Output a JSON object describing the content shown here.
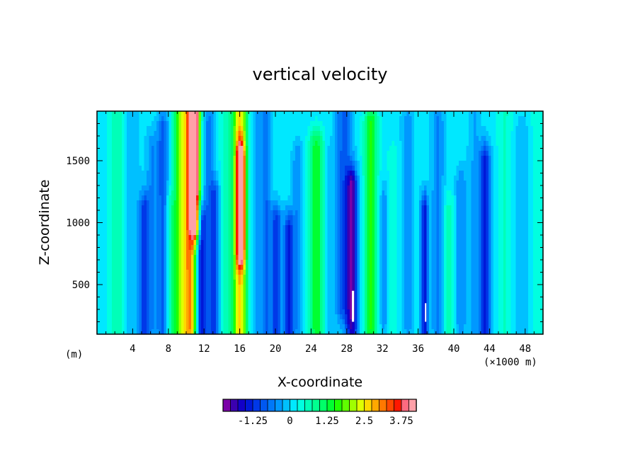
{
  "chart_data": {
    "type": "heatmap",
    "title": "vertical velocity",
    "xlabel": "X-coordinate",
    "ylabel": "Z-coordinate",
    "x_unit_left": "(m)",
    "x_unit_right": "(×1000 m)",
    "xlim": [
      0,
      50
    ],
    "ylim": [
      100,
      1900
    ],
    "x_ticks": [
      4,
      8,
      12,
      16,
      20,
      24,
      28,
      32,
      36,
      40,
      44,
      48
    ],
    "y_ticks": [
      500,
      1000,
      1500
    ],
    "colorbar": {
      "levels": [
        -2,
        -1.75,
        -1.5,
        -1.25,
        -1,
        -0.75,
        -0.5,
        -0.25,
        0,
        0.25,
        0.5,
        0.75,
        1,
        1.25,
        1.5,
        1.75,
        2,
        2.25,
        2.5,
        2.75,
        3,
        3.25,
        3.5,
        3.75,
        4
      ],
      "tick_labels": [
        "-1.25",
        "0",
        "1.25",
        "2.5",
        "3.75"
      ],
      "tick_values": [
        -1.25,
        0,
        1.25,
        2.5,
        3.75
      ],
      "colors": [
        "#7b00a8",
        "#3b00b0",
        "#1200c8",
        "#0018d8",
        "#0038e8",
        "#0058f0",
        "#0078f8",
        "#0098ff",
        "#00c0ff",
        "#00e8ff",
        "#00ffe0",
        "#00ffb8",
        "#00ff90",
        "#00ff68",
        "#00ff30",
        "#20ff00",
        "#60ff00",
        "#a0ff00",
        "#e0ff00",
        "#ffd800",
        "#ffa800",
        "#ff7800",
        "#ff4800",
        "#ff1800",
        "#ff6a80",
        "#ffa0a8"
      ]
    },
    "features": [
      {
        "x": 2.3,
        "w": 0.9,
        "z0": 100,
        "z1": 1900,
        "v": 0.55
      },
      {
        "x": 3.8,
        "w": 0.9,
        "z0": 100,
        "z1": 1900,
        "v": -0.4
      },
      {
        "x": 5.3,
        "w": 0.55,
        "z0": 100,
        "z1": 1100,
        "v": -1.2
      },
      {
        "x": 6.2,
        "w": 0.7,
        "z0": 200,
        "z1": 1600,
        "v": -0.6
      },
      {
        "x": 7.4,
        "w": 0.6,
        "z0": 150,
        "z1": 1750,
        "v": -1.0
      },
      {
        "x": 8.2,
        "w": 0.6,
        "z0": 100,
        "z1": 1100,
        "v": 0.6
      },
      {
        "x": 9.2,
        "w": 0.7,
        "z0": 100,
        "z1": 1900,
        "v": 1.3
      },
      {
        "x": 10.4,
        "w": 0.9,
        "z0": 150,
        "z1": 1900,
        "v": 2.9
      },
      {
        "x": 11.0,
        "w": 0.55,
        "z0": 1000,
        "z1": 1900,
        "v": 3.2
      },
      {
        "x": 11.6,
        "w": 0.55,
        "z0": 100,
        "z1": 1000,
        "v": -1.8
      },
      {
        "x": 12.5,
        "w": 0.7,
        "z0": 100,
        "z1": 1800,
        "v": -0.7
      },
      {
        "x": 13.2,
        "w": 0.55,
        "z0": 100,
        "z1": 1200,
        "v": -1.0
      },
      {
        "x": 14.4,
        "w": 0.7,
        "z0": 100,
        "z1": 1900,
        "v": 0.4
      },
      {
        "x": 16.0,
        "w": 0.85,
        "z0": 150,
        "z1": 1900,
        "v": 2.5
      },
      {
        "x": 16.1,
        "w": 0.45,
        "z0": 800,
        "z1": 1500,
        "v": 3.1
      },
      {
        "x": 17.7,
        "w": 0.6,
        "z0": 100,
        "z1": 1900,
        "v": -0.4
      },
      {
        "x": 18.9,
        "w": 0.6,
        "z0": 100,
        "z1": 1900,
        "v": -0.9
      },
      {
        "x": 20.1,
        "w": 0.55,
        "z0": 100,
        "z1": 1000,
        "v": -1.3
      },
      {
        "x": 21.5,
        "w": 0.55,
        "z0": 100,
        "z1": 950,
        "v": -1.4
      },
      {
        "x": 22.5,
        "w": 0.6,
        "z0": 200,
        "z1": 1500,
        "v": -0.6
      },
      {
        "x": 24.6,
        "w": 0.85,
        "z0": 150,
        "z1": 1600,
        "v": 1.3
      },
      {
        "x": 26.0,
        "w": 0.55,
        "z0": 100,
        "z1": 1500,
        "v": -0.3
      },
      {
        "x": 27.7,
        "w": 0.9,
        "z0": 300,
        "z1": 1900,
        "v": -1.0
      },
      {
        "x": 28.6,
        "w": 0.6,
        "z0": 100,
        "z1": 1300,
        "v": -1.8
      },
      {
        "x": 30.7,
        "w": 0.75,
        "z0": 150,
        "z1": 1800,
        "v": 1.4
      },
      {
        "x": 32.2,
        "w": 0.55,
        "z0": 200,
        "z1": 1200,
        "v": -0.5
      },
      {
        "x": 33.2,
        "w": 0.7,
        "z0": 100,
        "z1": 1500,
        "v": 0.3
      },
      {
        "x": 34.8,
        "w": 0.7,
        "z0": 200,
        "z1": 1800,
        "v": -0.5
      },
      {
        "x": 36.7,
        "w": 0.4,
        "z0": 100,
        "z1": 1100,
        "v": -1.5
      },
      {
        "x": 38.2,
        "w": 0.7,
        "z0": 150,
        "z1": 1800,
        "v": -0.7
      },
      {
        "x": 39.4,
        "w": 0.6,
        "z0": 150,
        "z1": 1100,
        "v": 0.5
      },
      {
        "x": 40.8,
        "w": 0.6,
        "z0": 200,
        "z1": 1300,
        "v": -0.6
      },
      {
        "x": 42.3,
        "w": 0.7,
        "z0": 100,
        "z1": 1900,
        "v": -0.4
      },
      {
        "x": 43.5,
        "w": 0.6,
        "z0": 100,
        "z1": 1500,
        "v": -1.5
      },
      {
        "x": 45.8,
        "w": 0.9,
        "z0": 100,
        "z1": 1900,
        "v": 0.4
      },
      {
        "x": 47.6,
        "w": 0.9,
        "z0": 100,
        "z1": 1700,
        "v": -0.35
      },
      {
        "x": 49.3,
        "w": 0.8,
        "z0": 100,
        "z1": 1900,
        "v": 0.3
      }
    ],
    "white_spots": [
      {
        "x": 28.7,
        "z0": 200,
        "z1": 450,
        "w": 0.25
      },
      {
        "x": 36.8,
        "z0": 200,
        "z1": 350,
        "w": 0.08
      }
    ]
  }
}
